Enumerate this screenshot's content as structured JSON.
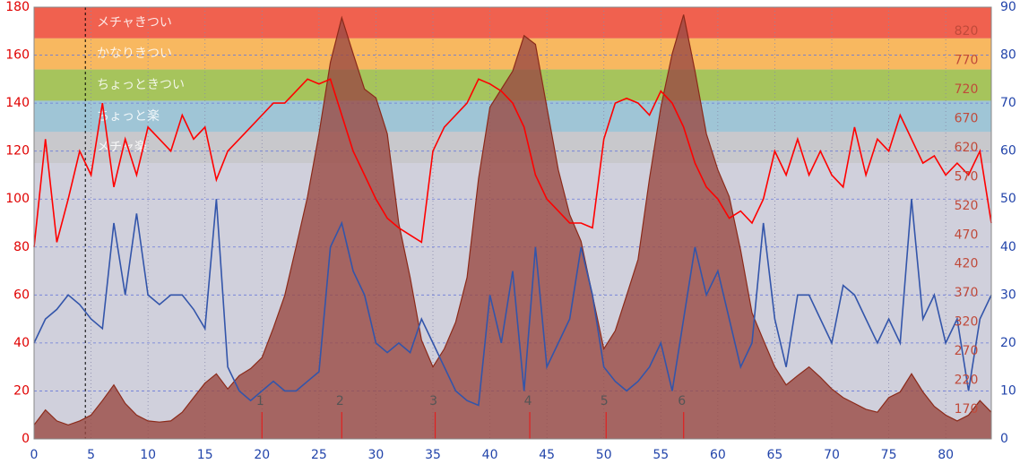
{
  "chart_data": {
    "type": "line",
    "x": [
      0,
      1,
      2,
      3,
      4,
      5,
      6,
      7,
      8,
      9,
      10,
      11,
      12,
      13,
      14,
      15,
      16,
      17,
      18,
      19,
      20,
      21,
      22,
      23,
      24,
      25,
      26,
      27,
      28,
      29,
      30,
      31,
      32,
      33,
      34,
      35,
      36,
      37,
      38,
      39,
      40,
      41,
      42,
      43,
      44,
      45,
      46,
      47,
      48,
      49,
      50,
      51,
      52,
      53,
      54,
      55,
      56,
      57,
      58,
      59,
      60,
      61,
      62,
      63,
      64,
      65,
      66,
      67,
      68,
      69,
      70,
      71,
      72,
      73,
      74,
      75,
      76,
      77,
      78,
      79,
      80,
      81,
      82,
      83,
      84
    ],
    "xlim": [
      0,
      84
    ],
    "xticks": [
      0,
      5,
      10,
      15,
      20,
      25,
      30,
      35,
      40,
      45,
      50,
      55,
      60,
      65,
      70,
      75,
      80
    ],
    "ylim": [
      0,
      180
    ],
    "yticks": [
      0,
      20,
      40,
      60,
      80,
      100,
      120,
      140,
      160,
      180
    ],
    "y2lim": [
      0,
      90
    ],
    "y2ticks": [
      0,
      10,
      20,
      30,
      40,
      50,
      60,
      70,
      80,
      90
    ],
    "y3lim": [
      119,
      862
    ],
    "y3ticks": [
      170,
      220,
      270,
      320,
      370,
      420,
      470,
      520,
      570,
      620,
      670,
      720,
      770,
      820
    ],
    "grid": true,
    "zones": [
      {
        "label": "メチャきつい",
        "from": 167,
        "to": 180,
        "color": "#f0614f"
      },
      {
        "label": "かなりきつい",
        "from": 154,
        "to": 167,
        "color": "#f8b860"
      },
      {
        "label": "ちょっときつい",
        "from": 141,
        "to": 154,
        "color": "#a6c45c"
      },
      {
        "label": "ちょっと楽",
        "from": 128,
        "to": 141,
        "color": "#9fc5d6"
      },
      {
        "label": "メチャ楽",
        "from": 115,
        "to": 128,
        "color": "#c8c8cc"
      }
    ],
    "markers": [
      {
        "label": "1",
        "x": 20
      },
      {
        "label": "2",
        "x": 27
      },
      {
        "label": "3",
        "x": 35.2
      },
      {
        "label": "4",
        "x": 43.5
      },
      {
        "label": "5",
        "x": 50.2
      },
      {
        "label": "6",
        "x": 57
      }
    ],
    "series": [
      {
        "color": "#8b2a1a",
        "fill": "#9a4a44",
        "axis": "y3",
        "values": [
          143,
          169,
          150,
          143,
          150,
          160,
          185,
          212,
          180,
          160,
          150,
          148,
          150,
          165,
          190,
          215,
          231,
          205,
          228,
          240,
          259,
          310,
          366,
          450,
          536,
          644,
          767,
          844,
          782,
          721,
          706,
          644,
          490,
          397,
          289,
          243,
          274,
          320,
          397,
          567,
          690,
          721,
          752,
          813,
          798,
          690,
          582,
          505,
          459,
          366,
          274,
          305,
          366,
          428,
          567,
          690,
          782,
          849,
          752,
          644,
          582,
          536,
          444,
          336,
          289,
          243,
          212,
          228,
          243,
          225,
          205,
          190,
          180,
          170,
          165,
          190,
          200,
          231,
          200,
          175,
          160,
          150,
          160,
          185,
          165
        ]
      },
      {
        "color": "#3355aa",
        "axis": "y2",
        "values": [
          20,
          25,
          27,
          30,
          28,
          25,
          23,
          45,
          30,
          47,
          30,
          28,
          30,
          30,
          27,
          23,
          50,
          15,
          10,
          8,
          10,
          12,
          10,
          10,
          12,
          14,
          40,
          45,
          35,
          30,
          20,
          18,
          20,
          18,
          25,
          20,
          15,
          10,
          8,
          7,
          30,
          20,
          35,
          10,
          40,
          15,
          20,
          25,
          40,
          30,
          15,
          12,
          10,
          12,
          15,
          20,
          10,
          25,
          40,
          30,
          35,
          25,
          15,
          20,
          45,
          25,
          15,
          30,
          30,
          25,
          20,
          32,
          30,
          25,
          20,
          25,
          20,
          50,
          25,
          30,
          20,
          25,
          10,
          25,
          30
        ]
      },
      {
        "color": "#ff0000",
        "axis": "y",
        "values": [
          80,
          125,
          82,
          100,
          120,
          110,
          140,
          105,
          125,
          110,
          130,
          125,
          120,
          135,
          125,
          130,
          108,
          120,
          125,
          130,
          135,
          140,
          140,
          145,
          150,
          148,
          150,
          135,
          120,
          110,
          100,
          92,
          88,
          85,
          82,
          120,
          130,
          135,
          140,
          150,
          148,
          145,
          140,
          130,
          110,
          100,
          95,
          90,
          90,
          88,
          125,
          140,
          142,
          140,
          135,
          145,
          140,
          130,
          115,
          105,
          100,
          92,
          95,
          90,
          100,
          120,
          110,
          125,
          110,
          120,
          110,
          105,
          130,
          110,
          125,
          120,
          135,
          125,
          115,
          118,
          110,
          115,
          110,
          120,
          90
        ]
      }
    ]
  }
}
